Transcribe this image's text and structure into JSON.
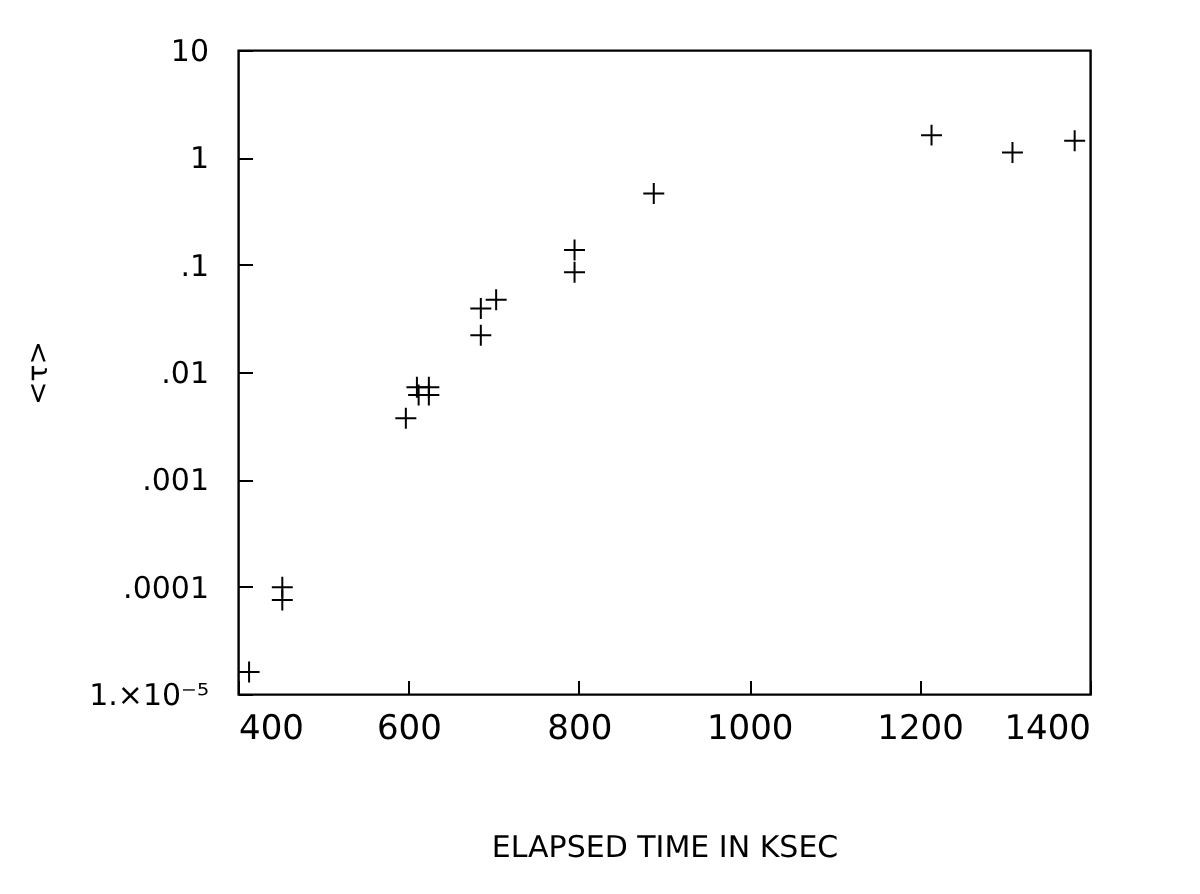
{
  "chart_data": {
    "type": "scatter",
    "xlabel": "ELAPSED TIME IN KSEC",
    "ylabel": "<τ>",
    "x": [
      413,
      452,
      452,
      597,
      610,
      612,
      624,
      624,
      685,
      685,
      703,
      795,
      795,
      888,
      1214,
      1309,
      1382
    ],
    "values": [
      1.6e-05,
      9.9e-05,
      7.5e-05,
      0.0037,
      0.0072,
      0.0061,
      0.0072,
      0.0061,
      0.039,
      0.022,
      0.047,
      0.137,
      0.085,
      0.46,
      1.61,
      1.11,
      1.43
    ],
    "color": "#000000",
    "xlim": [
      400,
      1400
    ],
    "xticks": [
      400,
      600,
      800,
      1000,
      1200,
      1400
    ],
    "ylim": [
      1e-05,
      10
    ],
    "yticks": [
      {
        "value": 1e-05,
        "label": "1.×10⁻⁵"
      },
      {
        "value": 0.0001,
        "label": ".0001"
      },
      {
        "value": 0.001,
        "label": ".001"
      },
      {
        "value": 0.01,
        "label": ".01"
      },
      {
        "value": 0.1,
        "label": ".1"
      },
      1,
      10
    ],
    "log": "y",
    "grid": false,
    "marker": "cross"
  }
}
